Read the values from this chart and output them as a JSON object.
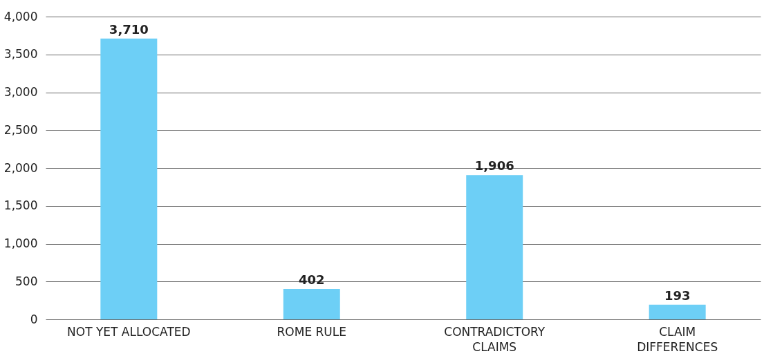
{
  "chart_data": {
    "type": "bar",
    "categories": [
      "NOT YET ALLOCATED",
      "ROME RULE",
      "CONTRADICTORY\nCLAIMS",
      "CLAIM\nDIFFERENCES"
    ],
    "values": [
      3710,
      402,
      1906,
      193
    ],
    "color": "#6dcff6",
    "ylim": [
      0,
      4000
    ],
    "yticks": [
      {
        "value": 0,
        "label": "0"
      },
      {
        "value": 500,
        "label": "500"
      },
      {
        "value": 1000,
        "label": "1,000"
      },
      {
        "value": 1500,
        "label": "1,500"
      },
      {
        "value": 2000,
        "label": "2,000"
      },
      {
        "value": 2500,
        "label": "2,500"
      },
      {
        "value": 3000,
        "label": "3,000"
      },
      {
        "value": 3500,
        "label": "3,500"
      },
      {
        "value": 4000,
        "label": "4,000"
      }
    ],
    "value_labels": [
      "3,710",
      "402",
      "1,906",
      "193"
    ],
    "grid": "y"
  }
}
